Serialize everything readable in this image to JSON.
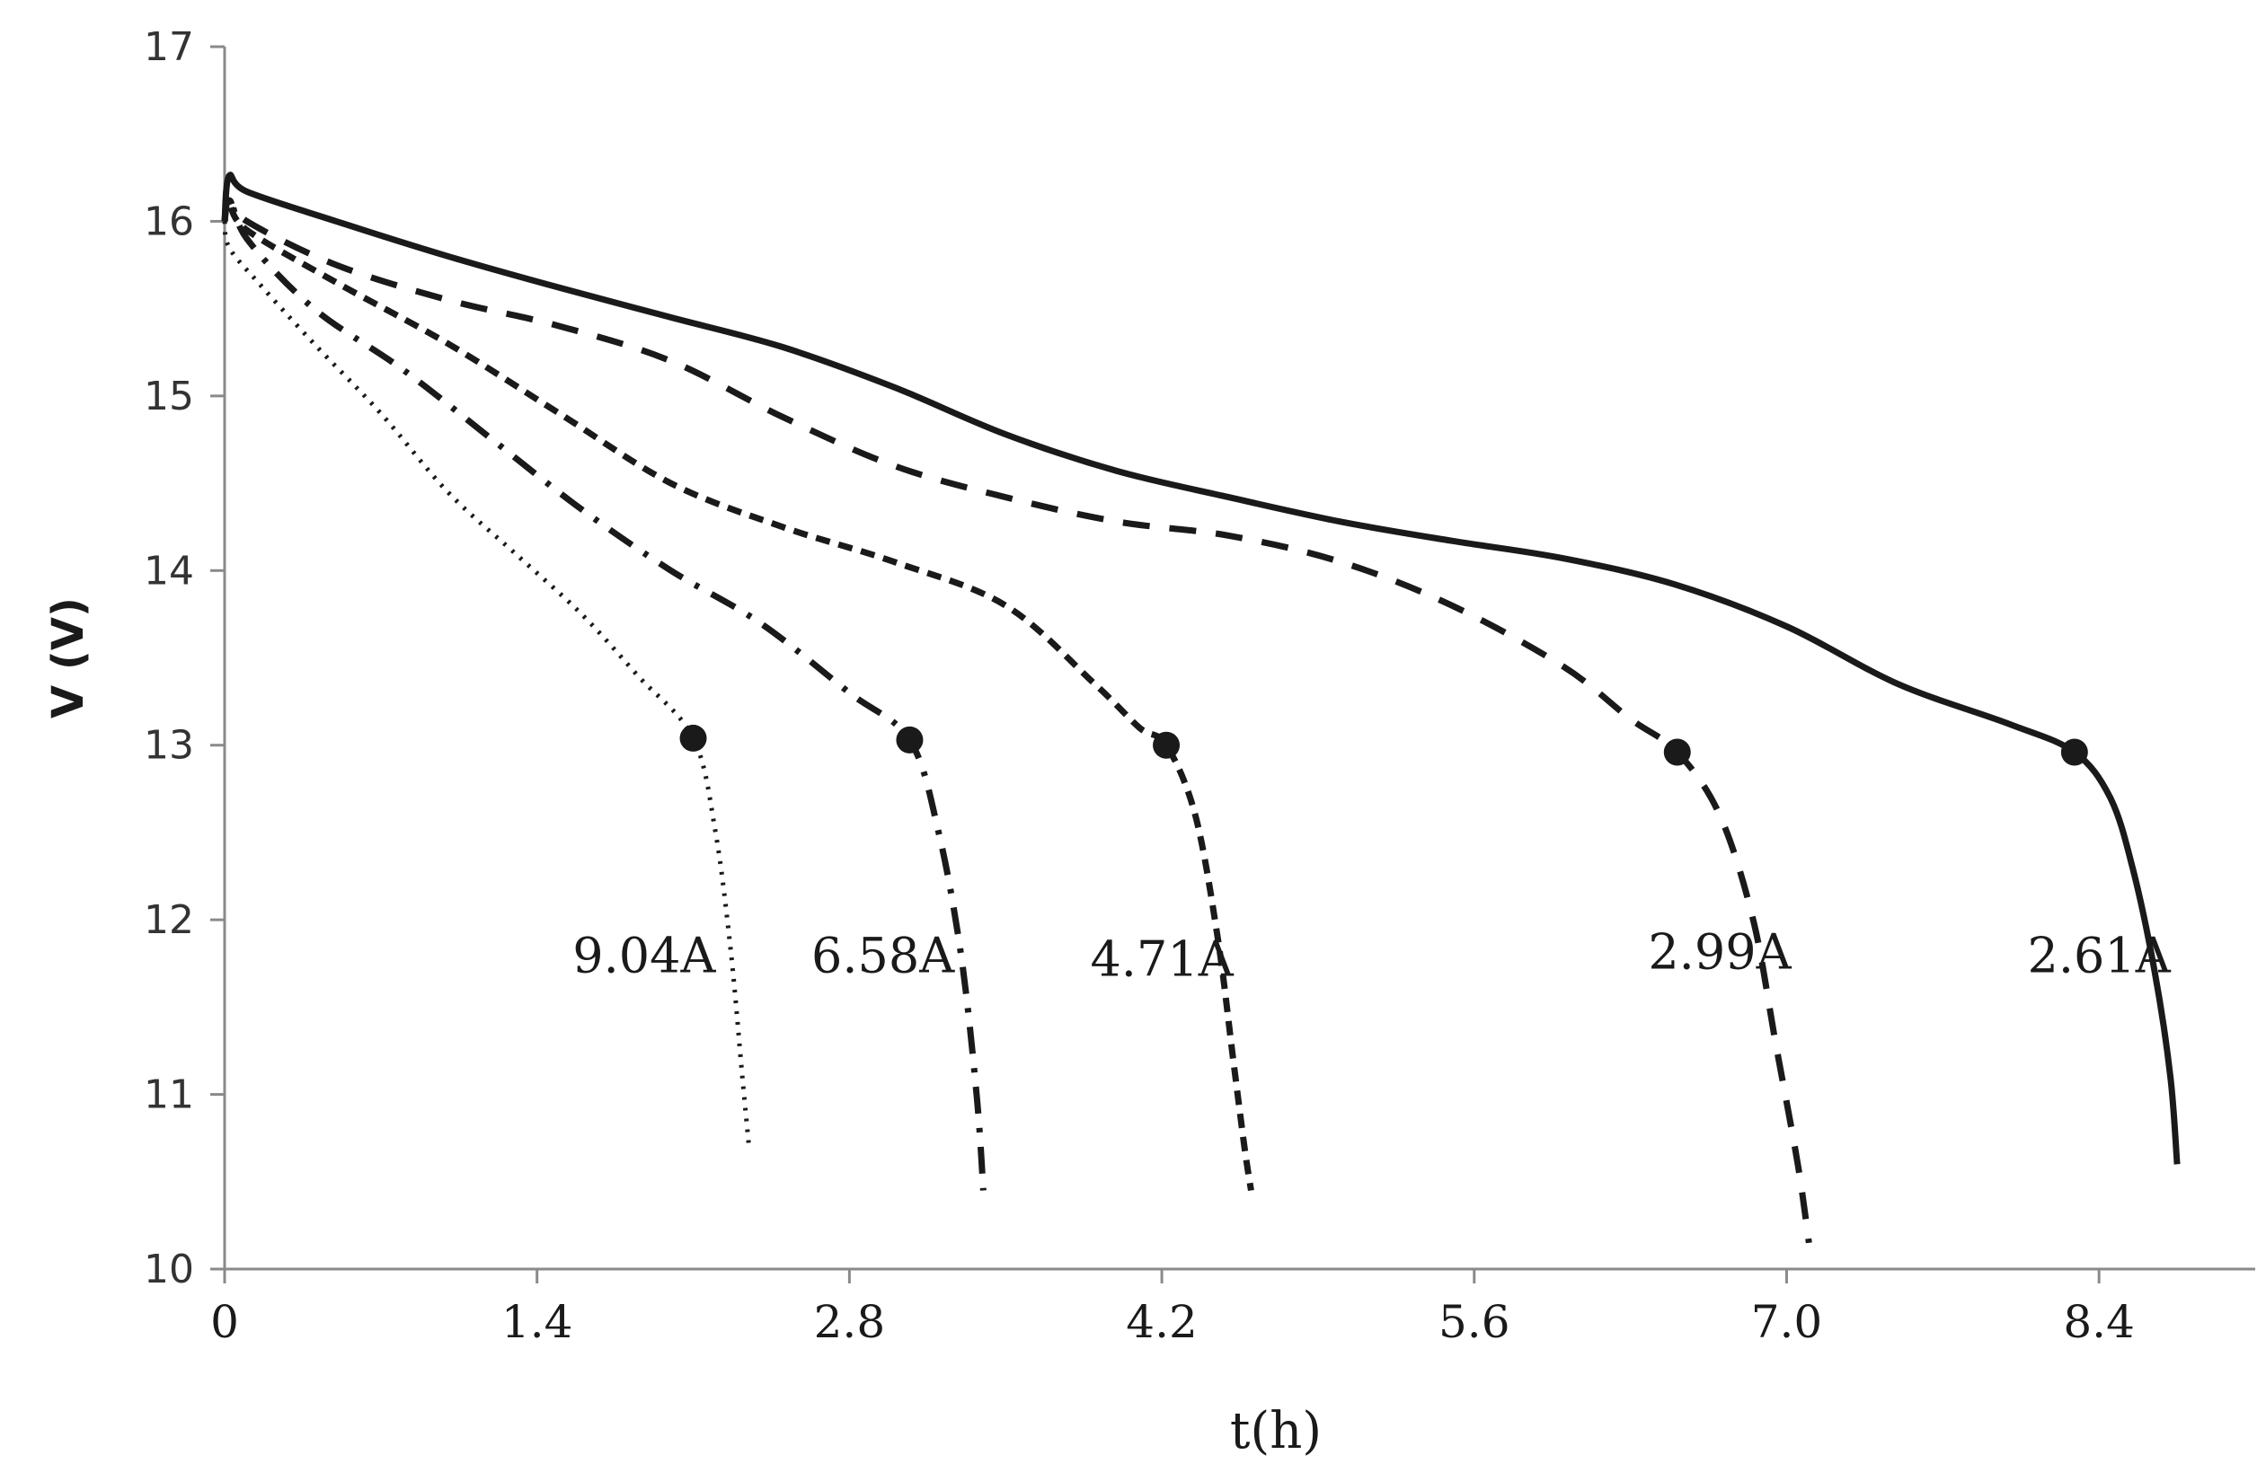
{
  "chart_data": {
    "type": "line",
    "title": "",
    "xlabel": "t(h)",
    "ylabel": "V (V)",
    "xlim": [
      0,
      9.1
    ],
    "ylim": [
      10,
      17
    ],
    "x_ticks": [
      "0",
      "1.4",
      "2.8",
      "4.2",
      "5.6",
      "7.0",
      "8.4"
    ],
    "y_ticks": [
      "10",
      "11",
      "12",
      "13",
      "14",
      "15",
      "16",
      "17"
    ],
    "grid": false,
    "legend": "none",
    "series": [
      {
        "name": "2.61A",
        "style": "solid",
        "label_pos": [
          8.4,
          11.7
        ],
        "marker": [
          8.29,
          12.96
        ],
        "x": [
          0,
          0.02,
          0.1,
          0.5,
          1.0,
          1.5,
          2.0,
          2.5,
          3.0,
          3.5,
          4.0,
          4.5,
          5.0,
          5.5,
          6.0,
          6.5,
          7.0,
          7.5,
          8.0,
          8.29,
          8.45,
          8.55,
          8.65,
          8.72,
          8.75
        ],
        "y": [
          16.0,
          16.26,
          16.17,
          16.0,
          15.8,
          15.62,
          15.45,
          15.28,
          15.05,
          14.78,
          14.57,
          14.42,
          14.28,
          14.17,
          14.07,
          13.92,
          13.68,
          13.35,
          13.12,
          12.96,
          12.7,
          12.3,
          11.7,
          11.1,
          10.6
        ]
      },
      {
        "name": "2.99A",
        "style": "dashed",
        "label_pos": [
          6.7,
          11.72
        ],
        "marker": [
          6.51,
          12.96
        ],
        "x": [
          0,
          0.02,
          0.1,
          0.5,
          1.0,
          1.5,
          2.0,
          2.5,
          3.0,
          3.5,
          4.0,
          4.5,
          5.0,
          5.5,
          6.0,
          6.3,
          6.51,
          6.7,
          6.85,
          6.95,
          7.05,
          7.1
        ],
        "y": [
          16.0,
          16.12,
          16.0,
          15.75,
          15.55,
          15.4,
          15.2,
          14.88,
          14.6,
          14.42,
          14.28,
          14.2,
          14.05,
          13.8,
          13.45,
          13.15,
          12.96,
          12.6,
          12.0,
          11.3,
          10.6,
          10.15
        ]
      },
      {
        "name": "4.71A",
        "style": "short-dash",
        "label_pos": [
          4.2,
          11.68
        ],
        "marker": [
          4.22,
          13.0
        ],
        "x": [
          0,
          0.02,
          0.1,
          0.5,
          1.0,
          1.5,
          2.0,
          2.5,
          3.0,
          3.5,
          3.9,
          4.1,
          4.22,
          4.35,
          4.45,
          4.52,
          4.57,
          4.6
        ],
        "y": [
          16.0,
          16.1,
          15.95,
          15.65,
          15.3,
          14.9,
          14.5,
          14.25,
          14.05,
          13.8,
          13.35,
          13.1,
          13.0,
          12.6,
          11.9,
          11.2,
          10.7,
          10.45
        ]
      },
      {
        "name": "6.58A",
        "style": "dash-dot",
        "label_pos": [
          2.95,
          11.7
        ],
        "marker": [
          3.07,
          13.03
        ],
        "x": [
          0,
          0.02,
          0.1,
          0.4,
          0.8,
          1.2,
          1.6,
          2.0,
          2.4,
          2.8,
          3.07,
          3.2,
          3.3,
          3.37,
          3.4
        ],
        "y": [
          16.0,
          16.15,
          15.9,
          15.5,
          15.15,
          14.75,
          14.35,
          14.0,
          13.7,
          13.3,
          13.03,
          12.5,
          11.8,
          11.0,
          10.45
        ]
      },
      {
        "name": "9.04A",
        "style": "dotted",
        "label_pos": [
          1.88,
          11.7
        ],
        "marker": [
          2.1,
          13.04
        ],
        "x": [
          0,
          0.02,
          0.15,
          0.4,
          0.7,
          1.0,
          1.3,
          1.6,
          1.85,
          2.1,
          2.2,
          2.27,
          2.32,
          2.35
        ],
        "y": [
          16.0,
          15.85,
          15.65,
          15.3,
          14.9,
          14.45,
          14.1,
          13.75,
          13.4,
          13.04,
          12.5,
          11.8,
          11.1,
          10.7
        ]
      }
    ]
  }
}
